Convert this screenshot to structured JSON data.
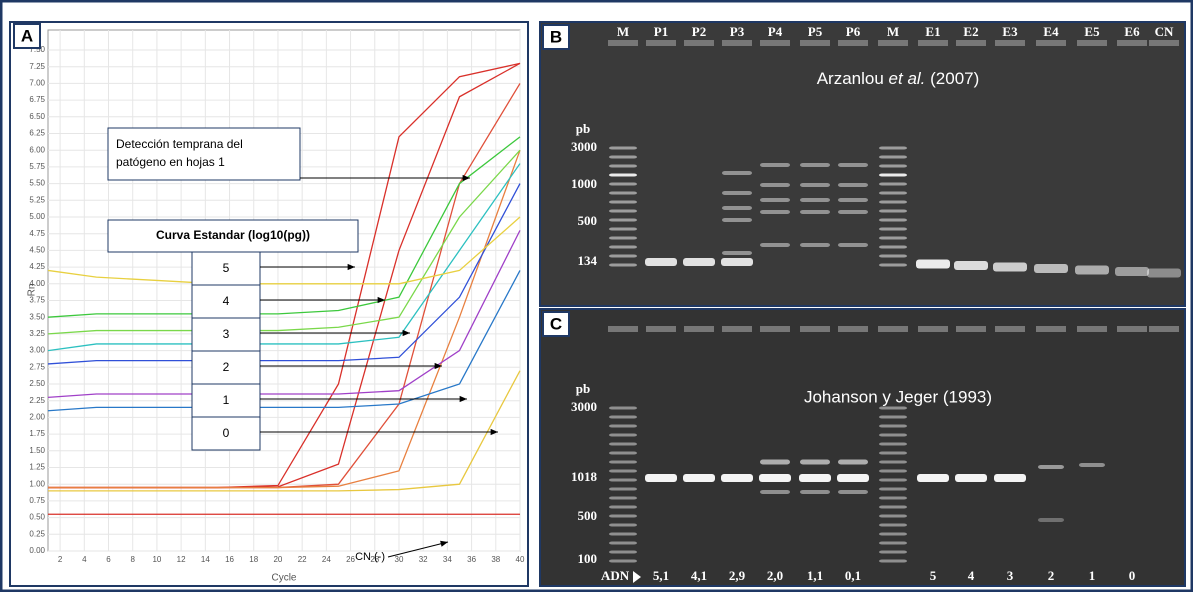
{
  "chart_data": {
    "type": "line",
    "panel_label": "A",
    "xlabel": "Cycle",
    "ylabel": "Rn",
    "xlim": [
      1,
      40
    ],
    "ylim": [
      0,
      7.5
    ],
    "xticks": [
      2,
      4,
      6,
      8,
      10,
      12,
      14,
      16,
      18,
      20,
      22,
      24,
      26,
      28,
      30,
      32,
      34,
      36,
      38,
      40
    ],
    "yticks": [
      {
        "value": 0,
        "label": "0.00"
      },
      {
        "value": 0.25,
        "label": "0.25"
      },
      {
        "value": 0.5,
        "label": "0.50"
      },
      {
        "value": 0.75,
        "label": "0.75"
      },
      {
        "value": 1,
        "label": "1.00"
      },
      {
        "value": 1.25,
        "label": "1.25"
      },
      {
        "value": 1.5,
        "label": "1.50"
      },
      {
        "value": 1.75,
        "label": "1.75"
      },
      {
        "value": 2,
        "label": "2.00"
      },
      {
        "value": 2.25,
        "label": "2.25"
      },
      {
        "value": 2.5,
        "label": "2.50"
      },
      {
        "value": 2.75,
        "label": "2.75"
      },
      {
        "value": 3,
        "label": "3.00"
      },
      {
        "value": 3.25,
        "label": "3.25"
      },
      {
        "value": 3.5,
        "label": "3.50"
      },
      {
        "value": 3.75,
        "label": "3.75"
      },
      {
        "value": 4,
        "label": "4.00"
      },
      {
        "value": 4.25,
        "label": "4.25"
      },
      {
        "value": 4.5,
        "label": "4.50"
      },
      {
        "value": 4.75,
        "label": "4.75"
      },
      {
        "value": 5,
        "label": "5.00"
      },
      {
        "value": 5.25,
        "label": "5.25"
      },
      {
        "value": 5.5,
        "label": "5.50"
      },
      {
        "value": 5.75,
        "label": "5.75"
      },
      {
        "value": 6,
        "label": "6.00"
      },
      {
        "value": 6.25,
        "label": "6.25"
      },
      {
        "value": 6.5,
        "label": "6.50"
      },
      {
        "value": 6.75,
        "label": "6.75"
      },
      {
        "value": 7,
        "label": "7.00"
      },
      {
        "value": 7.25,
        "label": "7.25"
      },
      {
        "value": 7.5,
        "label": "7.50"
      }
    ],
    "grid": true,
    "x": [
      1,
      5,
      10,
      15,
      20,
      25,
      30,
      35,
      40
    ],
    "series": [
      {
        "color": "#d9302a",
        "values": [
          0.95,
          0.95,
          0.95,
          0.95,
          0.98,
          2.5,
          6.2,
          7.1,
          7.3
        ]
      },
      {
        "color": "#d9302a",
        "values": [
          0.95,
          0.95,
          0.95,
          0.95,
          0.96,
          1.3,
          4.5,
          6.8,
          7.3
        ]
      },
      {
        "color": "#e0503a",
        "values": [
          0.95,
          0.95,
          0.95,
          0.95,
          0.95,
          1.0,
          2.2,
          5.5,
          7.0
        ]
      },
      {
        "color": "#e88040",
        "values": [
          0.95,
          0.95,
          0.95,
          0.95,
          0.95,
          0.97,
          1.2,
          3.5,
          6.0
        ]
      },
      {
        "color": "#3cc83c",
        "values": [
          3.5,
          3.55,
          3.55,
          3.55,
          3.55,
          3.6,
          3.8,
          5.5,
          6.2
        ]
      },
      {
        "color": "#7ad84a",
        "values": [
          3.25,
          3.3,
          3.3,
          3.3,
          3.3,
          3.35,
          3.5,
          5.0,
          6.0
        ]
      },
      {
        "color": "#2cc0c0",
        "values": [
          3.0,
          3.1,
          3.1,
          3.1,
          3.1,
          3.1,
          3.2,
          4.5,
          5.8
        ]
      },
      {
        "color": "#3050d8",
        "values": [
          2.8,
          2.85,
          2.85,
          2.85,
          2.85,
          2.85,
          2.9,
          3.8,
          5.5
        ]
      },
      {
        "color": "#a040c8",
        "values": [
          2.3,
          2.35,
          2.35,
          2.35,
          2.35,
          2.35,
          2.4,
          3.0,
          4.8
        ]
      },
      {
        "color": "#2878c8",
        "values": [
          2.1,
          2.15,
          2.15,
          2.15,
          2.15,
          2.15,
          2.2,
          2.5,
          4.2
        ]
      },
      {
        "color": "#e8d040",
        "values": [
          4.2,
          4.1,
          4.05,
          4.0,
          4.0,
          4.0,
          4.0,
          4.2,
          5.0
        ]
      },
      {
        "color": "#e8c840",
        "values": [
          0.9,
          0.9,
          0.9,
          0.9,
          0.9,
          0.9,
          0.92,
          1.0,
          2.7
        ]
      },
      {
        "color": "#d9302a",
        "values": [
          0.55,
          0.55,
          0.55,
          0.55,
          0.55,
          0.55,
          0.55,
          0.55,
          0.55
        ]
      }
    ],
    "annotations": {
      "early": [
        "Detección temprana del",
        "patógeno en hojas 1"
      ],
      "standard": "Curva Estandar (log10(pg))",
      "levels": [
        5,
        4,
        3,
        2,
        1,
        0
      ],
      "negative": "CN (-)"
    }
  },
  "gel_b": {
    "label": "B",
    "lanes": [
      "M",
      "P1",
      "P2",
      "P3",
      "P4",
      "P5",
      "P6",
      "M",
      "E1",
      "E2",
      "E3",
      "E4",
      "E5",
      "E6",
      "CN"
    ],
    "unit": "pb",
    "ladder": [
      3000,
      1000,
      500
    ],
    "product": 134,
    "citation": [
      "Arzanlou ",
      "et al.",
      " (2007)"
    ]
  },
  "gel_c": {
    "label": "C",
    "unit": "pb",
    "ladder": [
      3000,
      500,
      100
    ],
    "product": 1018,
    "citation": "Johanson y Jeger (1993)",
    "sample": "ADN",
    "amounts": [
      "5,1",
      "4,1",
      "2,9",
      "2,0",
      "1,1",
      "0,1",
      "5",
      "4",
      "3",
      "2",
      "1",
      "0"
    ]
  }
}
